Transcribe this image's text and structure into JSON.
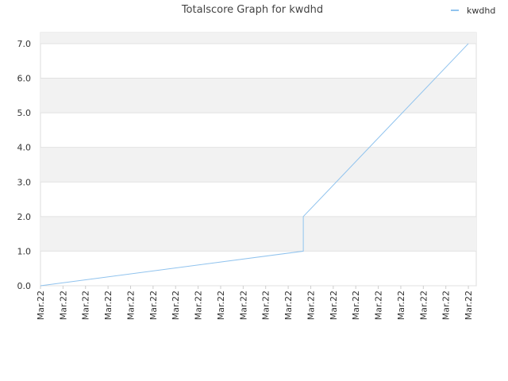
{
  "chart_data": {
    "type": "line",
    "title": "Totalscore Graph for kwdhd",
    "x": [
      0,
      11.67,
      11.67,
      19
    ],
    "series": [
      {
        "name": "kwdhd",
        "color": "#90c3ee",
        "values": [
          0,
          1,
          2,
          7
        ]
      }
    ],
    "xlim": [
      0,
      19.35
    ],
    "xticks": [
      {
        "value": 0,
        "label": "Mar.22"
      },
      {
        "value": 1,
        "label": "Mar.22"
      },
      {
        "value": 2,
        "label": "Mar.22"
      },
      {
        "value": 3,
        "label": "Mar.22"
      },
      {
        "value": 4,
        "label": "Mar.22"
      },
      {
        "value": 5,
        "label": "Mar.22"
      },
      {
        "value": 6,
        "label": "Mar.22"
      },
      {
        "value": 7,
        "label": "Mar.22"
      },
      {
        "value": 8,
        "label": "Mar.22"
      },
      {
        "value": 9,
        "label": "Mar.22"
      },
      {
        "value": 10,
        "label": "Mar.22"
      },
      {
        "value": 11,
        "label": "Mar.22"
      },
      {
        "value": 12,
        "label": "Mar.22"
      },
      {
        "value": 13,
        "label": "Mar.22"
      },
      {
        "value": 14,
        "label": "Mar.22"
      },
      {
        "value": 15,
        "label": "Mar.22"
      },
      {
        "value": 16,
        "label": "Mar.22"
      },
      {
        "value": 17,
        "label": "Mar.22"
      },
      {
        "value": 18,
        "label": "Mar.22"
      },
      {
        "value": 19,
        "label": "Mar.22"
      }
    ],
    "ylim": [
      0,
      7.32
    ],
    "yticks": [
      {
        "value": 0,
        "label": "0.0"
      },
      {
        "value": 1,
        "label": "1.0"
      },
      {
        "value": 2,
        "label": "2.0"
      },
      {
        "value": 3,
        "label": "3.0"
      },
      {
        "value": 4,
        "label": "4.0"
      },
      {
        "value": 5,
        "label": "5.0"
      },
      {
        "value": 6,
        "label": "6.0"
      },
      {
        "value": 7,
        "label": "7.0"
      }
    ],
    "grid": true,
    "legend": "top-right"
  }
}
